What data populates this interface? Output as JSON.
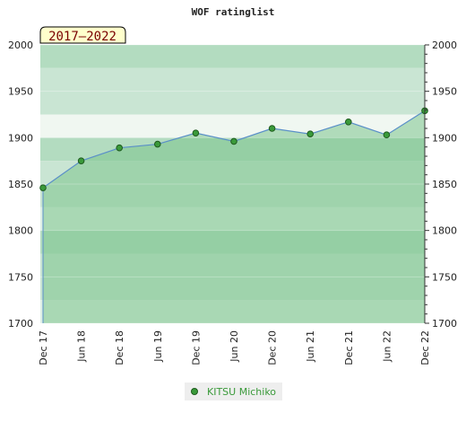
{
  "chart_data": {
    "type": "area",
    "title": "WOF ratinglist",
    "period_label": "2017–2022",
    "x": [
      "Dec 17",
      "Jun 18",
      "Dec 18",
      "Jun 19",
      "Dec 19",
      "Jun 20",
      "Dec 20",
      "Jun 21",
      "Dec 21",
      "Jun 22",
      "Dec 22"
    ],
    "ylim": [
      1700,
      2000
    ],
    "yticks": [
      1700,
      1750,
      1800,
      1850,
      1900,
      1950,
      2000
    ],
    "series": [
      {
        "name": "KITSU Michiko",
        "values": [
          1846,
          1875,
          1889,
          1893,
          1905,
          1896,
          1910,
          1904,
          1917,
          1903,
          1929
        ]
      }
    ],
    "grid": true,
    "legend_position": "bottom-center"
  },
  "colors": {
    "line": "#5a8fc8",
    "marker": "#3a9a3a",
    "area_fill": "#7cc48c",
    "band_dark": "#b3dcc0",
    "band_mid": "#c9e5d3",
    "band_light": "#dff0e5",
    "band_lightest": "#f0f7f1",
    "badge_bg": "#ffffcc",
    "badge_text": "#7a0000",
    "legend_text": "#3a9a3a"
  }
}
